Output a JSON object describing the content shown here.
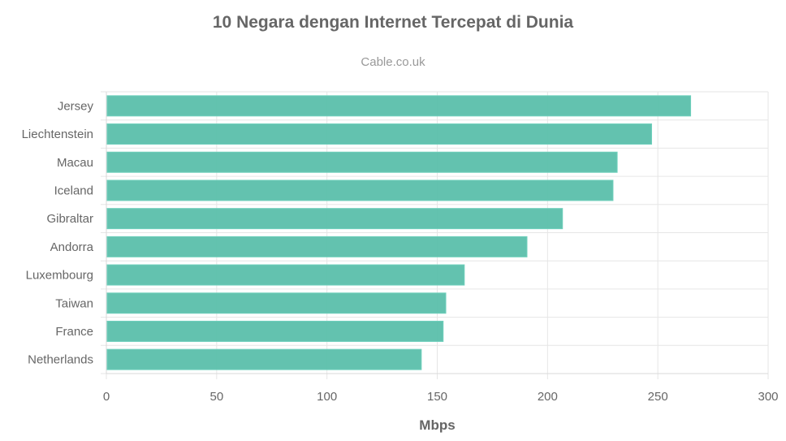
{
  "chart_data": {
    "type": "bar",
    "orientation": "horizontal",
    "title": "10 Negara dengan Internet Tercepat di Dunia",
    "subtitle": "Cable.co.uk",
    "xlabel": "Mbps",
    "ylabel": "",
    "xlim": [
      0,
      300
    ],
    "xticks": [
      "0",
      "50",
      "100",
      "150",
      "200",
      "250",
      "300"
    ],
    "categories": [
      "Jersey",
      "Liechtenstein",
      "Macau",
      "Iceland",
      "Gibraltar",
      "Andorra",
      "Luxembourg",
      "Taiwan",
      "France",
      "Netherlands"
    ],
    "values": [
      264.5,
      246.8,
      231.2,
      229.3,
      206.4,
      190.3,
      161.9,
      153.5,
      152.3,
      142.4
    ],
    "bar_color": "#5bbfab",
    "grid": true,
    "legend": false
  }
}
